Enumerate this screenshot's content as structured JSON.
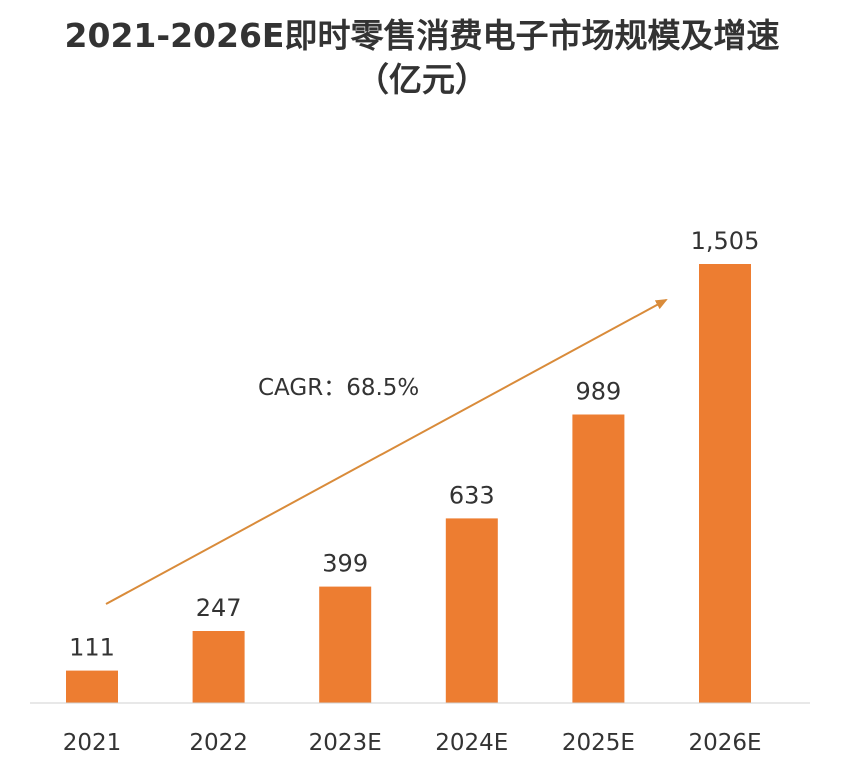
{
  "chart_data": {
    "type": "bar",
    "title_line1": "2021-2026E即时零售消费电子市场规模及增速",
    "title_line2": "（亿元）",
    "categories": [
      "2021",
      "2022",
      "2023E",
      "2024E",
      "2025E",
      "2026E"
    ],
    "values": [
      111,
      247,
      399,
      633,
      989,
      1505
    ],
    "value_labels": [
      "111",
      "247",
      "399",
      "633",
      "989",
      "1,505"
    ],
    "ylim": [
      0,
      1505
    ],
    "annotation": "CAGR：68.5%",
    "bar_color": "#ED7D31",
    "arrow_color": "#D98B3A",
    "grid": false,
    "legend": "none"
  }
}
